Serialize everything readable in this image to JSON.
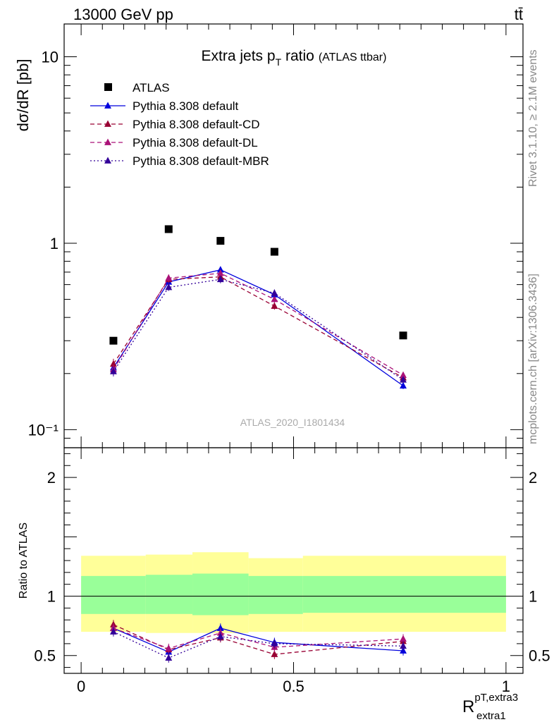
{
  "header": {
    "energy_label": "13000 GeV pp",
    "process_label": "tt̄"
  },
  "side_text": {
    "rivet": "Rivet 3.1.10, ≥ 2.1M events",
    "mcplots": "mcplots.cern.ch [arXiv:1306.3436]"
  },
  "watermark": "ATLAS_2020_I1801434",
  "top_panel": {
    "title_main": "Extra jets p",
    "title_sub": "T",
    "title_after": " ratio",
    "title_small": "(ATLAS ttbar)",
    "ylabel": "dσ/dR [pb]",
    "yscale": "log",
    "ylim": [
      0.08,
      15
    ],
    "ytick_labels": [
      {
        "v": 10,
        "t": "10"
      },
      {
        "v": 1,
        "t": "1"
      },
      {
        "v": 0.1,
        "t": "10⁻¹"
      }
    ]
  },
  "ratio_panel": {
    "ylabel": "Ratio to ATLAS",
    "ylim": [
      0.35,
      2.25
    ],
    "ytick_labels": [
      {
        "v": 2,
        "t": "2"
      },
      {
        "v": 1,
        "t": "1"
      },
      {
        "v": 0.5,
        "t": "0.5"
      }
    ]
  },
  "xaxis": {
    "label_main": "R",
    "label_sup": "pT,extra3",
    "label_sub": "extra1",
    "xlim": [
      -0.04,
      1.04
    ],
    "tick_labels": [
      {
        "v": 0,
        "t": "0"
      },
      {
        "v": 0.5,
        "t": "0.5"
      },
      {
        "v": 1,
        "t": "1"
      }
    ]
  },
  "legend": [
    {
      "key": "atlas",
      "label": "ATLAS"
    },
    {
      "key": "def",
      "label": "Pythia 8.308 default"
    },
    {
      "key": "cd",
      "label": "Pythia 8.308 default-CD"
    },
    {
      "key": "dl",
      "label": "Pythia 8.308 default-DL"
    },
    {
      "key": "mbr",
      "label": "Pythia 8.308 default-MBR"
    }
  ],
  "chart_data": {
    "type": "line",
    "x": [
      0.076,
      0.206,
      0.328,
      0.455,
      0.758
    ],
    "bin_edges": [
      0,
      0.152,
      0.262,
      0.394,
      0.522,
      1.0
    ],
    "series": [
      {
        "key": "atlas",
        "name": "ATLAS",
        "color": "#000000",
        "marker": "square",
        "values": [
          0.3,
          1.19,
          1.03,
          0.9,
          0.32
        ]
      },
      {
        "key": "def",
        "name": "Pythia 8.308 default",
        "color": "#0000dd",
        "line": "solid",
        "marker": "triangle",
        "values": [
          0.215,
          0.62,
          0.72,
          0.53,
          0.172
        ],
        "errors": [
          0.012,
          0.025,
          0.03,
          0.025,
          0.007
        ]
      },
      {
        "key": "cd",
        "name": "Pythia 8.308 default-CD",
        "color": "#990033",
        "line": "dashed",
        "marker": "triangle",
        "values": [
          0.225,
          0.64,
          0.66,
          0.46,
          0.19
        ],
        "errors": [
          0.015,
          0.03,
          0.03,
          0.02,
          0.008
        ]
      },
      {
        "key": "dl",
        "name": "Pythia 8.308 default-DL",
        "color": "#aa1177",
        "line": "dashed",
        "marker": "triangle",
        "values": [
          0.21,
          0.65,
          0.69,
          0.5,
          0.196
        ],
        "errors": [
          0.013,
          0.03,
          0.03,
          0.022,
          0.008
        ]
      },
      {
        "key": "mbr",
        "name": "Pythia 8.308 default-MBR",
        "color": "#330099",
        "line": "dotted",
        "marker": "triangle",
        "values": [
          0.205,
          0.58,
          0.64,
          0.54,
          0.185
        ],
        "errors": [
          0.012,
          0.025,
          0.03,
          0.025,
          0.007
        ]
      }
    ],
    "ratio": {
      "band_inner": [
        [
          0.85,
          1.17
        ],
        [
          0.85,
          1.18
        ],
        [
          0.84,
          1.19
        ],
        [
          0.85,
          1.17
        ],
        [
          0.86,
          1.17
        ]
      ],
      "band_outer": [
        [
          0.7,
          1.34
        ],
        [
          0.69,
          1.35
        ],
        [
          0.69,
          1.37
        ],
        [
          0.7,
          1.32
        ],
        [
          0.7,
          1.34
        ]
      ],
      "series": [
        {
          "key": "def",
          "values": [
            0.73,
            0.53,
            0.73,
            0.61,
            0.54
          ]
        },
        {
          "key": "cd",
          "values": [
            0.76,
            0.55,
            0.65,
            0.51,
            0.62
          ]
        },
        {
          "key": "dl",
          "values": [
            0.73,
            0.56,
            0.69,
            0.57,
            0.64
          ]
        },
        {
          "key": "mbr",
          "values": [
            0.7,
            0.48,
            0.66,
            0.6,
            0.58
          ]
        }
      ]
    }
  }
}
